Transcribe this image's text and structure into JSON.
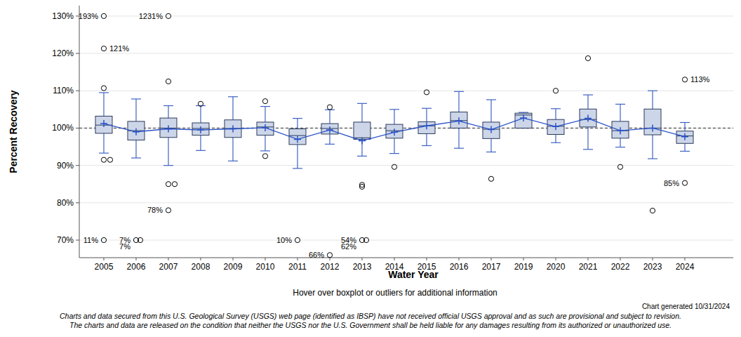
{
  "chart_data": {
    "type": "box",
    "x_label": "Water Year",
    "y_label": "Percent Recovery",
    "notes": [
      "Hover over boxplot or outliers for additional information",
      "Chart generated 10/31/2024",
      "Charts and data secured from this U.S. Geological Survey (USGS) web page (identified as IBSP) have not received official USGS approval and as such are provisional and subject to revision.",
      "The charts and data are released on the condition that neither the USGS nor the U.S. Government shall be held liable for any damages resulting from its authorized or unauthorized use."
    ],
    "categories": [
      "2005",
      "2006",
      "2007",
      "2008",
      "2009",
      "2010",
      "2011",
      "2012",
      "2013",
      "2014",
      "2015",
      "2016",
      "2017",
      "2019",
      "2020",
      "2021",
      "2022",
      "2023",
      "2024"
    ],
    "whisker_low": [
      93.3,
      92.0,
      90.0,
      94.0,
      91.2,
      93.9,
      89.2,
      95.7,
      92.5,
      93.2,
      95.3,
      94.6,
      93.6,
      100.0,
      96.1,
      94.3,
      94.9,
      91.8,
      93.8
    ],
    "q1": [
      98.6,
      96.8,
      97.5,
      98.1,
      97.5,
      98.1,
      95.6,
      98.4,
      97.0,
      97.3,
      98.5,
      100.0,
      97.2,
      100.0,
      98.3,
      100.3,
      97.3,
      98.2,
      95.9
    ],
    "median": [
      100.8,
      99.3,
      100.0,
      99.9,
      99.9,
      100.3,
      98.0,
      99.9,
      97.4,
      99.3,
      100.6,
      102.0,
      99.7,
      103.5,
      100.5,
      102.3,
      99.3,
      100.0,
      97.9
    ],
    "q3": [
      103.2,
      101.8,
      102.7,
      101.4,
      102.2,
      101.6,
      99.8,
      101.2,
      101.6,
      101.0,
      101.7,
      104.3,
      101.6,
      104.0,
      102.3,
      105.1,
      101.8,
      105.1,
      99.2
    ],
    "whisker_high": [
      109.5,
      107.8,
      106.0,
      106.0,
      108.4,
      105.8,
      102.6,
      104.9,
      106.6,
      105.0,
      105.3,
      109.8,
      107.6,
      104.2,
      105.2,
      108.9,
      106.4,
      110.0,
      101.5
    ],
    "mean": [
      101.2,
      99.0,
      99.8,
      99.5,
      99.8,
      100.1,
      97.0,
      99.5,
      96.6,
      98.9,
      100.6,
      101.9,
      99.6,
      102.7,
      100.4,
      102.6,
      99.3,
      100.0,
      97.7
    ],
    "outliers": [
      [
        193,
        121.3,
        110.7,
        91.5,
        91.5,
        11
      ],
      [
        7,
        7
      ],
      [
        1231,
        112.5,
        85,
        85,
        78
      ],
      [
        106.5
      ],
      [],
      [
        107.2,
        92.5
      ],
      [
        10
      ],
      [
        105.6,
        66
      ],
      [
        84.8,
        84.3,
        54,
        62
      ],
      [
        89.6
      ],
      [
        109.6
      ],
      [],
      [
        86.4
      ],
      [],
      [
        110.0
      ],
      [
        118.7
      ],
      [
        89.6
      ],
      [
        77.9
      ],
      [
        113.0,
        85.3
      ]
    ],
    "outlier_labels": [
      [
        "193%",
        "121%",
        null,
        null,
        null,
        "11%"
      ],
      [
        "7%",
        "7%"
      ],
      [
        "1231%",
        null,
        null,
        null,
        "78%"
      ],
      [
        null
      ],
      [],
      [
        null,
        null
      ],
      [
        "10%"
      ],
      [
        null,
        "66%"
      ],
      [
        null,
        null,
        "54%",
        "62%"
      ],
      [
        null
      ],
      [
        null
      ],
      [],
      [
        null
      ],
      [],
      [
        null
      ],
      [
        null
      ],
      [
        null
      ],
      [
        null
      ],
      [
        "113%",
        "85%"
      ]
    ],
    "reference_line": 100,
    "color": "#ccd6e8",
    "ylim": [
      65.3,
      132.8
    ],
    "yticks": [
      {
        "value": 70,
        "label": "70%"
      },
      {
        "value": 80,
        "label": "80%"
      },
      {
        "value": 90,
        "label": "90%"
      },
      {
        "value": 100,
        "label": "100%"
      },
      {
        "value": 110,
        "label": "110%"
      },
      {
        "value": 120,
        "label": "120%"
      },
      {
        "value": 130,
        "label": "130%"
      }
    ],
    "grid": true
  }
}
